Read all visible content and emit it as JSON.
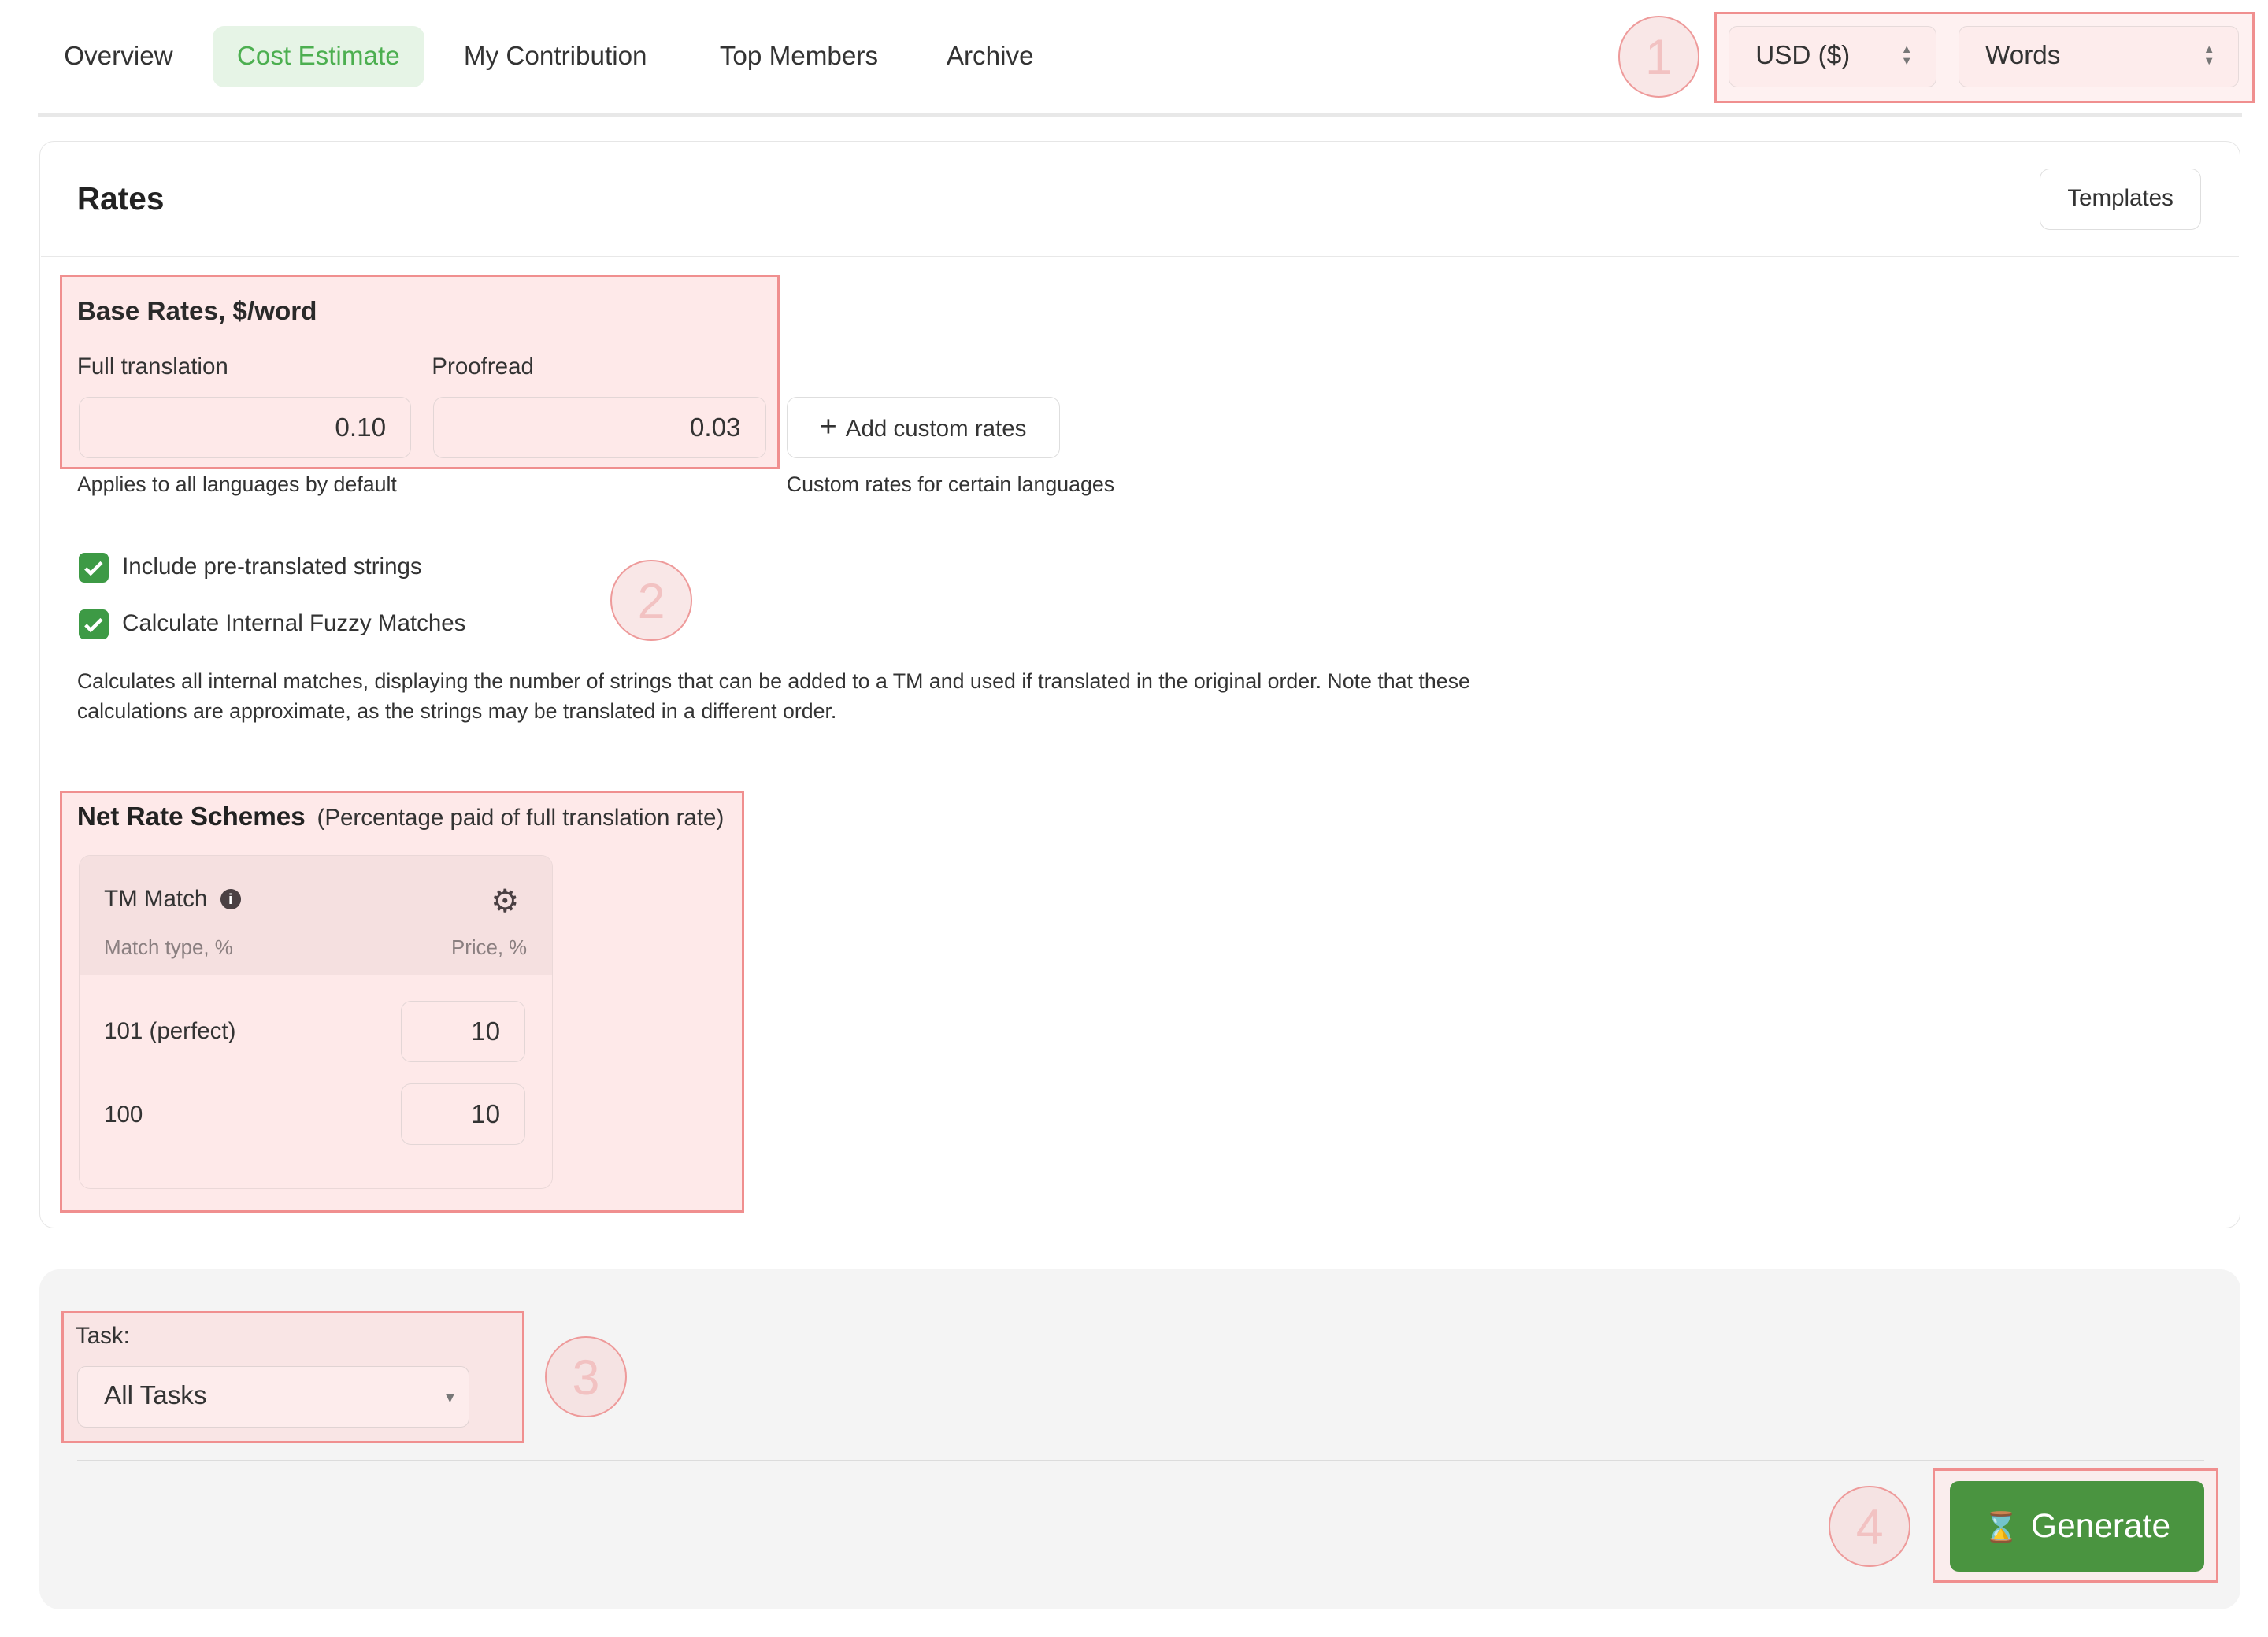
{
  "tabs": [
    {
      "label": "Overview"
    },
    {
      "label": "Cost Estimate",
      "active": true
    },
    {
      "label": "My Contribution"
    },
    {
      "label": "Top Members"
    },
    {
      "label": "Archive"
    }
  ],
  "currency_select": {
    "value": "USD ($)"
  },
  "unit_select": {
    "value": "Words"
  },
  "rates": {
    "title": "Rates",
    "templates_label": "Templates",
    "base_rates_title": "Base Rates, $/word",
    "full_translation_label": "Full translation",
    "full_translation_value": "0.10",
    "proofread_label": "Proofread",
    "proofread_value": "0.03",
    "add_custom_rates_label": "Add custom rates",
    "applies_note": "Applies to all languages by default",
    "custom_note": "Custom rates for certain languages",
    "include_pretranslated_label": "Include pre-translated strings",
    "include_pretranslated_checked": true,
    "fuzzy_label": "Calculate Internal Fuzzy Matches",
    "fuzzy_checked": true,
    "fuzzy_description": "Calculates all internal matches, displaying the number of strings that can be added to a TM and used if translated in the original order. Note that these calculations are approximate, as the strings may be translated in a different order.",
    "net_rate_title": "Net Rate Schemes",
    "net_rate_subtitle": "(Percentage paid of full translation rate)",
    "tm_match": {
      "title": "TM Match",
      "col_match": "Match type, %",
      "col_price": "Price, %",
      "rows": [
        {
          "match": "101 (perfect)",
          "price": "10"
        },
        {
          "match": "100",
          "price": "10"
        }
      ]
    }
  },
  "task": {
    "label": "Task:",
    "value": "All Tasks"
  },
  "generate_label": "Generate",
  "annotations": [
    "1",
    "2",
    "3",
    "4"
  ],
  "colors": {
    "accent": "#4caf50",
    "button_green": "#4a9440",
    "annotation": "#f08f8f"
  }
}
